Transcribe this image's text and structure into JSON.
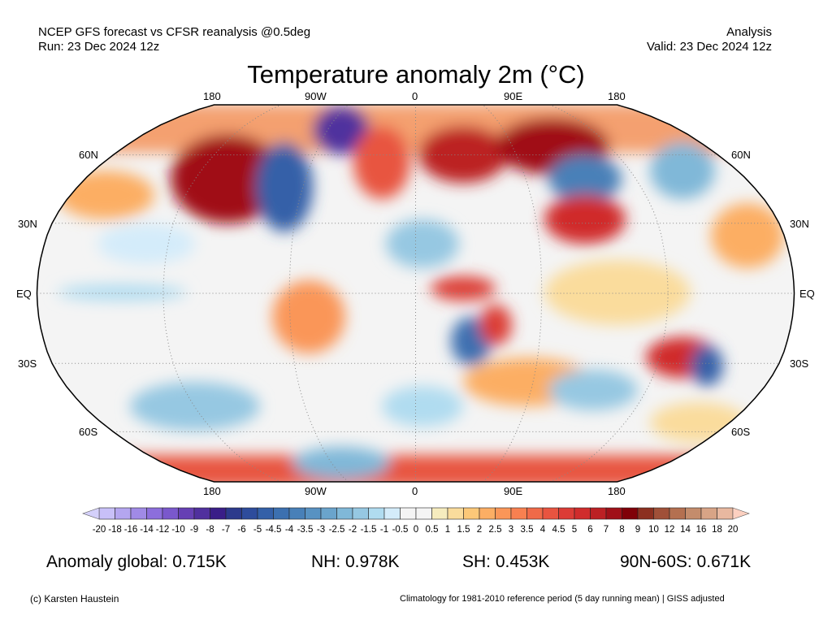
{
  "header": {
    "line1_left": "NCEP GFS forecast vs CFSR reanalysis @0.5deg",
    "line2_left": "Run: 23 Dec 2024 12z",
    "line1_right": "Analysis",
    "line2_right": "Valid: 23 Dec 2024 12z"
  },
  "title": "Temperature anomaly 2m (°C)",
  "map": {
    "lon_labels": [
      "180",
      "90W",
      "0",
      "90E",
      "180"
    ],
    "lat_labels": [
      "60N",
      "30N",
      "EQ",
      "30S",
      "60S"
    ]
  },
  "colorbar": {
    "labels": [
      "-20",
      "-18",
      "-16",
      "-14",
      "-12",
      "-10",
      "-9",
      "-8",
      "-7",
      "-6",
      "-5",
      "-4.5",
      "-4",
      "-3.5",
      "-3",
      "-2.5",
      "-2",
      "-1.5",
      "-1",
      "-0.5",
      "0",
      "0.5",
      "1",
      "1.5",
      "2",
      "2.5",
      "3",
      "3.5",
      "4",
      "4.5",
      "5",
      "6",
      "7",
      "8",
      "9",
      "10",
      "12",
      "14",
      "16",
      "18",
      "20"
    ],
    "colors": [
      "#c8c0f8",
      "#b4a6f0",
      "#a08ae6",
      "#8c6edc",
      "#7a58cc",
      "#6640b4",
      "#50309e",
      "#3a1e88",
      "#2c3a8c",
      "#2e4c9c",
      "#3460a8",
      "#3c70b0",
      "#4880b8",
      "#5892c2",
      "#6aa4cc",
      "#80b8d8",
      "#96c8e2",
      "#b0dcf0",
      "#d4ecfa",
      "#f4f4f4",
      "#f4f4f4",
      "#f6ecbe",
      "#fadc9c",
      "#fcc878",
      "#fcae64",
      "#fa9658",
      "#f88050",
      "#f06a48",
      "#e85440",
      "#dc3c36",
      "#d02c2c",
      "#bc2024",
      "#a01018",
      "#800008",
      "#8c3020",
      "#a05038",
      "#b47050",
      "#c48c6c",
      "#d8a486",
      "#e8b8a0"
    ],
    "under_color": "#d4d0fa",
    "over_color": "#fcd0c0"
  },
  "stats": {
    "global": "Anomaly global: 0.715K",
    "nh": "NH: 0.978K",
    "sh": "SH: 0.453K",
    "band": "90N-60S: 0.671K"
  },
  "credits": {
    "author": "(c) Karsten Haustein",
    "climatology": "Climatology for 1981-2010 reference period (5 day running mean) | GISS adjusted"
  }
}
